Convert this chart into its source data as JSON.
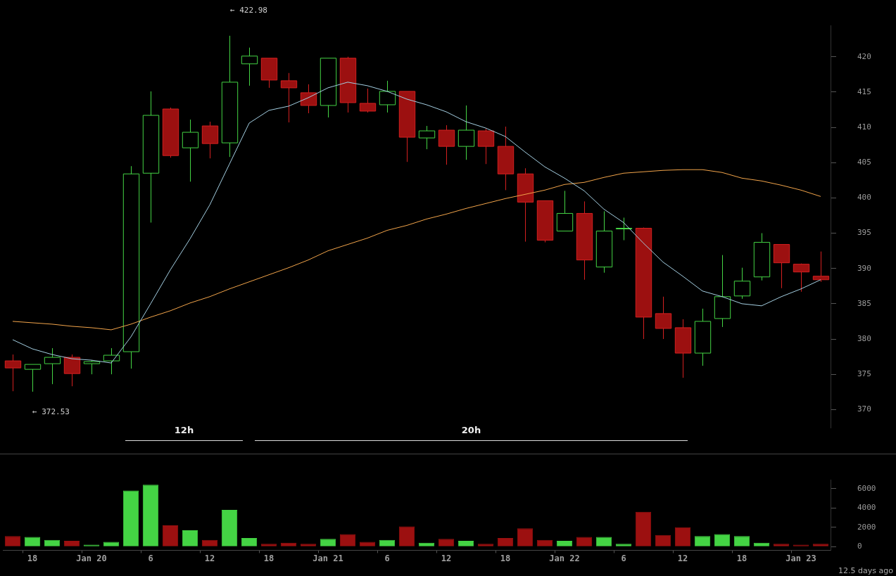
{
  "chart_data": [
    {
      "type": "candlestick",
      "ohlc": [
        [
          376.9,
          377.8,
          372.6,
          375.9
        ],
        [
          375.7,
          376.4,
          372.53,
          376.4
        ],
        [
          376.5,
          378.7,
          373.6,
          377.4
        ],
        [
          377.4,
          377.8,
          373.3,
          375.1
        ],
        [
          376.5,
          377.0,
          375.0,
          376.8
        ],
        [
          376.9,
          378.7,
          375.0,
          377.7
        ],
        [
          378.2,
          404.5,
          375.8,
          403.4
        ],
        [
          403.5,
          415.1,
          396.5,
          411.7
        ],
        [
          412.6,
          412.8,
          405.7,
          406.0
        ],
        [
          407.1,
          411.1,
          402.3,
          409.3
        ],
        [
          410.2,
          410.8,
          405.6,
          407.7
        ],
        [
          407.8,
          422.98,
          405.8,
          416.4
        ],
        [
          419.0,
          421.3,
          415.9,
          420.1
        ],
        [
          419.8,
          419.8,
          415.6,
          416.7
        ],
        [
          416.6,
          417.7,
          410.7,
          415.6
        ],
        [
          414.9,
          416.1,
          412.0,
          413.1
        ],
        [
          413.1,
          419.8,
          411.4,
          419.8
        ],
        [
          419.8,
          420.0,
          412.1,
          413.5
        ],
        [
          413.4,
          415.5,
          412.1,
          412.3
        ],
        [
          413.2,
          416.6,
          412.1,
          415.1
        ],
        [
          415.1,
          415.1,
          405.1,
          408.6
        ],
        [
          408.5,
          410.2,
          406.9,
          409.5
        ],
        [
          409.6,
          410.3,
          404.7,
          407.3
        ],
        [
          407.3,
          413.1,
          405.4,
          409.6
        ],
        [
          409.5,
          409.8,
          404.8,
          407.3
        ],
        [
          407.3,
          410.1,
          401.1,
          403.4
        ],
        [
          403.4,
          404.2,
          393.8,
          399.4
        ],
        [
          399.6,
          399.6,
          393.7,
          394.0
        ],
        [
          395.3,
          401.0,
          395.3,
          397.8
        ],
        [
          397.8,
          399.5,
          388.4,
          391.2
        ],
        [
          390.2,
          398.1,
          389.4,
          395.3
        ],
        [
          395.7,
          397.2,
          394.0,
          395.7
        ],
        [
          395.7,
          395.8,
          380.0,
          383.1
        ],
        [
          383.6,
          386.0,
          380.0,
          381.5
        ],
        [
          381.6,
          382.8,
          374.5,
          378.0
        ],
        [
          378.0,
          384.3,
          376.2,
          382.5
        ],
        [
          382.9,
          391.9,
          381.7,
          386.0
        ],
        [
          386.1,
          390.1,
          385.7,
          388.2
        ],
        [
          388.8,
          395.0,
          388.3,
          393.7
        ],
        [
          393.4,
          393.4,
          387.2,
          390.8
        ],
        [
          390.6,
          390.7,
          386.7,
          389.5
        ],
        [
          388.9,
          392.4,
          388.1,
          388.4
        ]
      ],
      "colors": [
        "#9c1010",
        "#44d444",
        "#44d444",
        "#9c1010",
        "#44d444",
        "#44d444",
        "#44d444",
        "#44d444",
        "#9c1010",
        "#44d444",
        "#9c1010",
        "#44d444",
        "#44d444",
        "#9c1010",
        "#9c1010",
        "#9c1010",
        "#44d444",
        "#9c1010",
        "#9c1010",
        "#44d444",
        "#9c1010",
        "#44d444",
        "#9c1010",
        "#44d444",
        "#9c1010",
        "#9c1010",
        "#9c1010",
        "#9c1010",
        "#44d444",
        "#9c1010",
        "#44d444",
        "#44d444",
        "#9c1010",
        "#9c1010",
        "#9c1010",
        "#44d444",
        "#44d444",
        "#44d444",
        "#44d444",
        "#9c1010",
        "#9c1010",
        "#9c1010"
      ],
      "series": [
        {
          "type": "line",
          "color": "#a4cfe2",
          "values": [
            379.9,
            378.6,
            377.8,
            377.2,
            377.0,
            376.6,
            380.3,
            385.0,
            389.8,
            394.2,
            399.0,
            404.8,
            410.6,
            412.4,
            413.0,
            414.2,
            415.6,
            416.4,
            415.9,
            415.1,
            414.0,
            413.2,
            412.2,
            410.8,
            409.9,
            408.7,
            406.5,
            404.4,
            402.8,
            401.0,
            398.4,
            396.5,
            393.6,
            390.9,
            388.9,
            386.8,
            386.0,
            385.0,
            384.7,
            386.0,
            387.1,
            388.4
          ]
        },
        {
          "type": "line",
          "color": "#f2a44a",
          "values": [
            382.5,
            382.3,
            382.1,
            381.8,
            381.6,
            381.3,
            382.1,
            383.1,
            384.0,
            385.1,
            386.0,
            387.1,
            388.1,
            389.1,
            390.1,
            391.2,
            392.5,
            393.4,
            394.3,
            395.4,
            396.1,
            397.0,
            397.7,
            398.5,
            399.2,
            399.9,
            400.5,
            401.1,
            401.9,
            402.2,
            402.9,
            403.5,
            403.7,
            403.9,
            404.0,
            404.0,
            403.6,
            402.8,
            402.4,
            401.8,
            401.1,
            400.2
          ]
        }
      ],
      "ylim": [
        367.4,
        424.4
      ],
      "yticks": [
        370,
        375,
        380,
        385,
        390,
        395,
        400,
        405,
        410,
        415,
        420
      ],
      "tick_labels": "y",
      "annotations": [
        "← 422.98",
        "← 372.53",
        "12h",
        "20h"
      ]
    },
    {
      "type": "bar",
      "categories": [
        null,
        "18",
        null,
        null,
        "Jan 20",
        null,
        null,
        "6",
        null,
        null,
        "12",
        null,
        null,
        "18",
        null,
        null,
        "Jan 21",
        null,
        null,
        "6",
        null,
        null,
        "12",
        null,
        null,
        "18",
        null,
        null,
        "Jan 22",
        null,
        null,
        "6",
        null,
        null,
        "12",
        null,
        null,
        "18",
        null,
        null,
        "Jan 23",
        null
      ],
      "values": [
        1100,
        1000,
        700,
        600,
        200,
        500,
        5800,
        6400,
        2200,
        1700,
        700,
        3800,
        900,
        300,
        400,
        300,
        800,
        1300,
        500,
        700,
        2100,
        400,
        800,
        600,
        300,
        900,
        1900,
        700,
        600,
        1000,
        1000,
        300,
        3600,
        1200,
        2000,
        1100,
        1300,
        1100,
        400,
        300,
        200,
        300
      ],
      "colors": [
        "#9c1010",
        "#44d444",
        "#44d444",
        "#9c1010",
        "#44d444",
        "#44d444",
        "#44d444",
        "#44d444",
        "#9c1010",
        "#44d444",
        "#9c1010",
        "#44d444",
        "#44d444",
        "#9c1010",
        "#9c1010",
        "#9c1010",
        "#44d444",
        "#9c1010",
        "#9c1010",
        "#44d444",
        "#9c1010",
        "#44d444",
        "#9c1010",
        "#44d444",
        "#9c1010",
        "#9c1010",
        "#9c1010",
        "#9c1010",
        "#44d444",
        "#9c1010",
        "#44d444",
        "#44d444",
        "#9c1010",
        "#9c1010",
        "#9c1010",
        "#44d444",
        "#44d444",
        "#44d444",
        "#44d444",
        "#9c1010",
        "#9c1010",
        "#9c1010"
      ],
      "ylim": [
        -370,
        6890
      ],
      "yticks": [
        0,
        2000,
        4000,
        6000
      ],
      "annotations": [
        "12.5 days ago"
      ]
    }
  ]
}
